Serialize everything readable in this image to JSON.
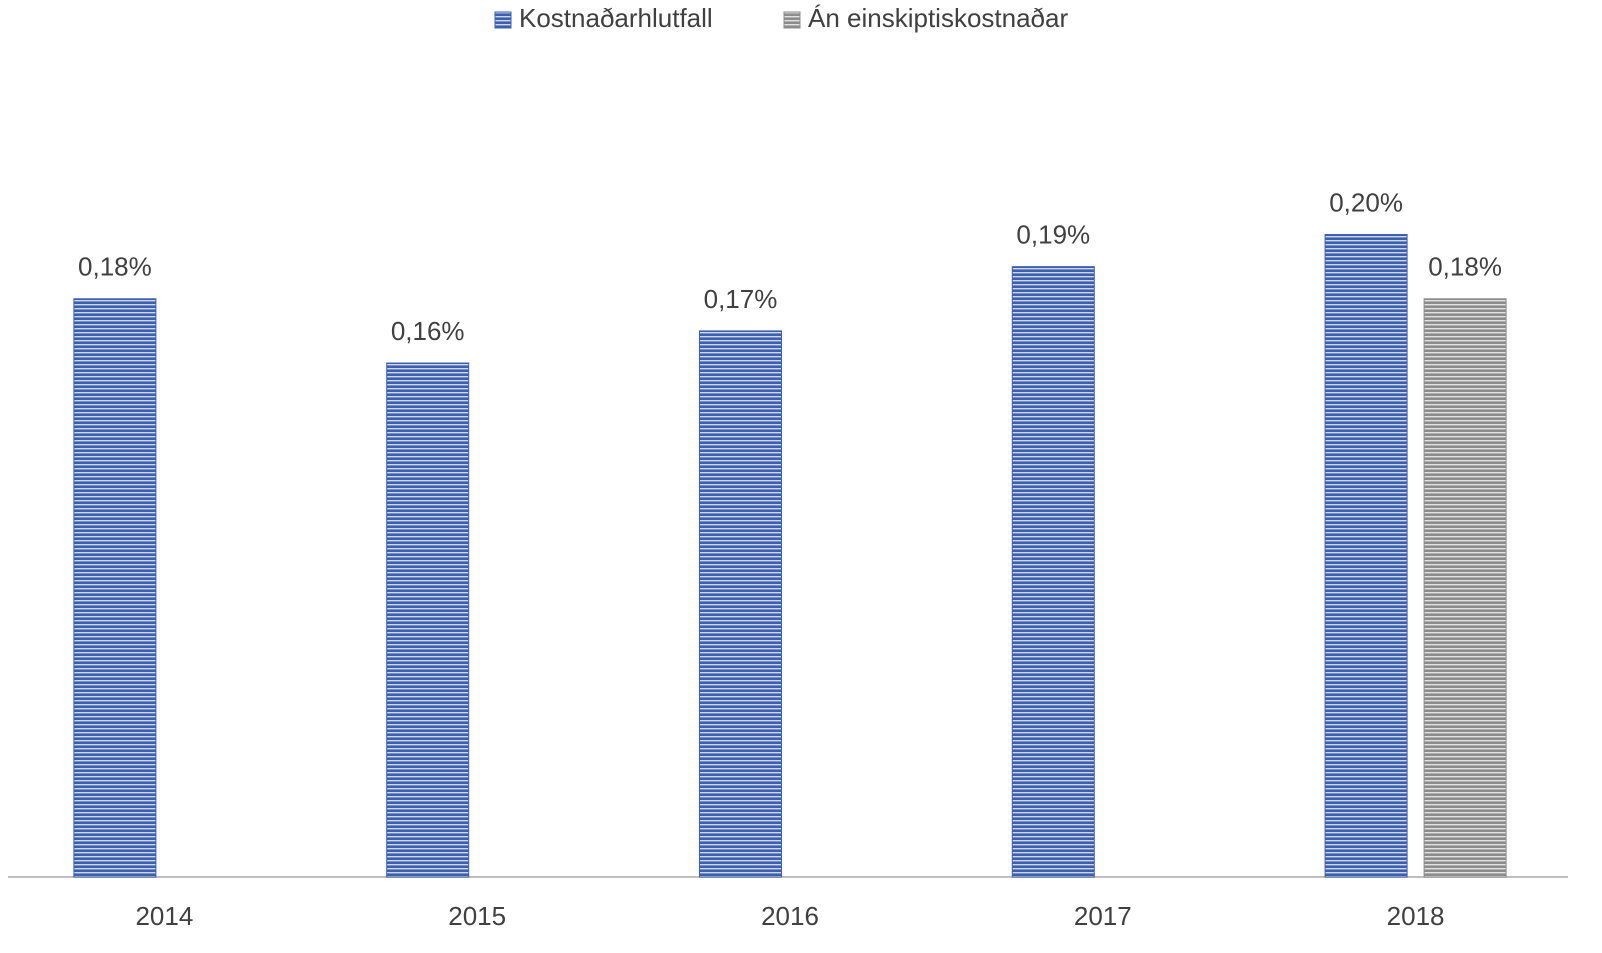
{
  "chart_data": {
    "type": "bar",
    "categories": [
      "2014",
      "2015",
      "2016",
      "2017",
      "2018"
    ],
    "series": [
      {
        "name": "Kostnaðarhlutfall",
        "color": "#3c5fae",
        "values": [
          0.18,
          0.16,
          0.17,
          0.19,
          0.2
        ],
        "value_labels": [
          "0,18%",
          "0,16%",
          "0,17%",
          "0,19%",
          "0,20%"
        ]
      },
      {
        "name": "Án einskiptiskostnaðar",
        "color": "#8c8c8c",
        "values": [
          null,
          null,
          null,
          null,
          0.18
        ],
        "value_labels": [
          null,
          null,
          null,
          null,
          "0,18%"
        ]
      }
    ],
    "ylim": [
      0,
      0.273
    ],
    "legend": "top"
  }
}
